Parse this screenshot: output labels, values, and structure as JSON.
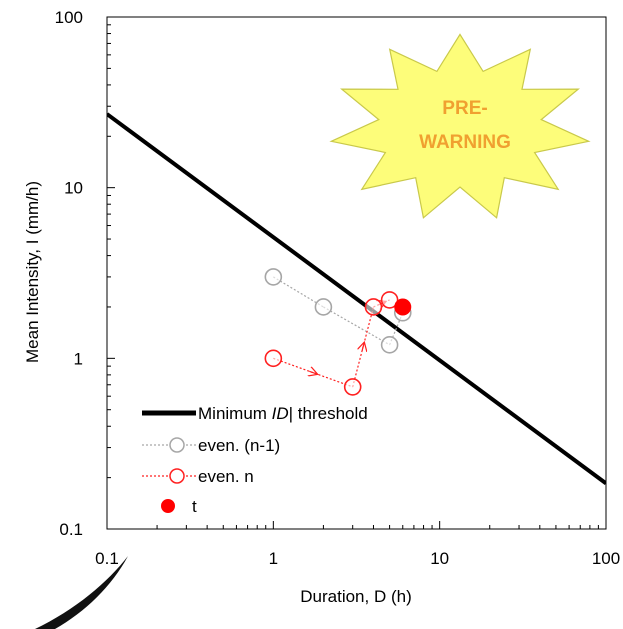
{
  "chart_data": {
    "type": "scatter",
    "x_scale": "log",
    "y_scale": "log",
    "xlabel": "Duration, D (h)",
    "ylabel": "Mean Intensity, I (mm/h)",
    "xlim": [
      0.1,
      100
    ],
    "ylim": [
      0.1,
      100
    ],
    "x_ticks": [
      0.1,
      1,
      10,
      100
    ],
    "x_tick_labels": [
      "0.1",
      "1",
      "10",
      "100"
    ],
    "y_ticks": [
      0.1,
      1,
      10,
      100
    ],
    "y_tick_labels": [
      "0.1",
      "1",
      "10",
      "100"
    ],
    "grid": false,
    "legend_position": "bottom-left",
    "annotation": {
      "text_lines": [
        "PRE-",
        "WARNING"
      ],
      "fill": "#fdfd7a",
      "text_color": "#f0a030"
    },
    "threshold": {
      "name": "Minimum ID threshold",
      "color": "#000000",
      "points": [
        [
          0.1,
          27
        ],
        [
          100,
          0.185
        ]
      ]
    },
    "series": [
      {
        "name": "even. (n-1)",
        "color": "#a6a6a6",
        "style": "dotted",
        "marker": "open-circle",
        "points": [
          [
            1,
            3.0
          ],
          [
            2,
            2.0
          ],
          [
            5,
            1.2
          ],
          [
            6,
            1.85
          ]
        ]
      },
      {
        "name": "even. n",
        "color": "#ff2020",
        "style": "dotted-arrow",
        "marker": "open-circle",
        "points": [
          [
            1,
            1.0
          ],
          [
            3,
            0.68
          ],
          [
            4,
            2.0
          ],
          [
            5,
            2.2
          ]
        ]
      },
      {
        "name": "t",
        "color": "#ff0000",
        "marker": "filled-circle",
        "points": [
          [
            6,
            2.0
          ]
        ]
      }
    ]
  }
}
